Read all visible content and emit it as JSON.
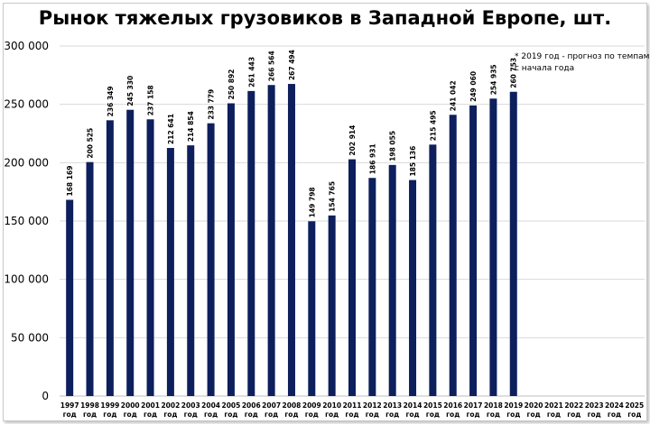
{
  "page": {
    "title": "Рынок тяжелых грузовиков в Западной Европе, шт.",
    "note_line1": "* 2019 год - прогноз по темпам",
    "note_line2": "с начала года"
  },
  "chart_data": {
    "type": "bar",
    "title": "Рынок тяжелых грузовиков в Западной Европе, шт.",
    "categories": [
      "1997",
      "1998",
      "1999",
      "2000",
      "2001",
      "2002",
      "2003",
      "2004",
      "2005",
      "2006",
      "2007",
      "2008",
      "2009",
      "2010",
      "2011",
      "2012",
      "2013",
      "2014",
      "2015",
      "2016",
      "2017",
      "2018",
      "2019",
      "2020",
      "2021",
      "2022",
      "2023",
      "2024",
      "2025"
    ],
    "category_suffix": "год",
    "values": [
      168169,
      200525,
      236349,
      245330,
      237158,
      212641,
      214854,
      233779,
      250892,
      261443,
      266564,
      267494,
      149798,
      154765,
      202914,
      186931,
      198055,
      185136,
      215495,
      241042,
      249060,
      254935,
      260753,
      null,
      null,
      null,
      null,
      null,
      null
    ],
    "data_labels": [
      "168 169",
      "200 525",
      "236 349",
      "245 330",
      "237 158",
      "212 641",
      "214 854",
      "233 779",
      "250 892",
      "261 443",
      "266 564",
      "267 494",
      "149 798",
      "154 765",
      "202 914",
      "186 931",
      "198 055",
      "185 136",
      "215 495",
      "241 042",
      "249 060",
      "254 935",
      "260 753",
      "",
      "",
      "",
      "",
      "",
      ""
    ],
    "y_ticks": [
      0,
      50000,
      100000,
      150000,
      200000,
      250000,
      300000
    ],
    "y_tick_labels": [
      "0",
      "50 000",
      "100 000",
      "150 000",
      "200 000",
      "250 000",
      "300 000"
    ],
    "ylim": [
      0,
      300000
    ],
    "grid": true,
    "legend": "none",
    "bar_color": "#0d1f5c",
    "grid_color": "#d9d9d9"
  }
}
